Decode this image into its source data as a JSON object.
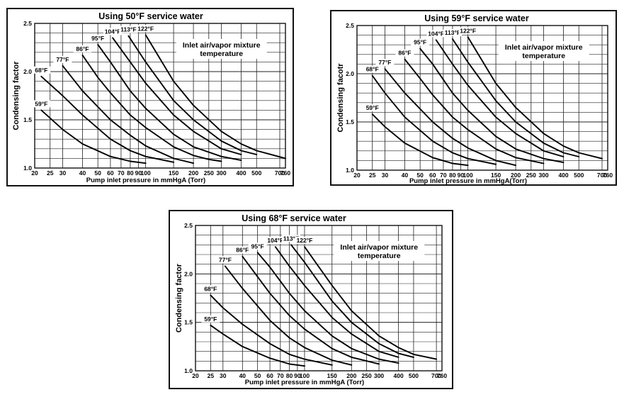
{
  "chart_data": [
    {
      "type": "line",
      "title": "Using 50°F service water",
      "xlabel": "Pump inlet pressure in mmHgA (Torr)",
      "ylabel": "Condensing factor",
      "xscale": "log",
      "xlim": [
        20,
        760
      ],
      "ylim": [
        1.0,
        2.5
      ],
      "grid": true,
      "x_ticks": [
        "20",
        "25",
        "30",
        "40",
        "50",
        "60",
        "70",
        "80",
        "90",
        "100",
        "150",
        "200",
        "250",
        "300",
        "400",
        "500",
        "700",
        "760"
      ],
      "y_ticks": [
        "1.0",
        "1.5",
        "2.0",
        "2.5"
      ],
      "annotation": [
        "Inlet air/vapor mixture",
        "temperature"
      ],
      "series": [
        {
          "name": "59°F",
          "points": [
            [
              22,
              1.6
            ],
            [
              30,
              1.4
            ],
            [
              40,
              1.25
            ],
            [
              60,
              1.12
            ],
            [
              80,
              1.07
            ],
            [
              100,
              1.05
            ]
          ]
        },
        {
          "name": "68°F",
          "points": [
            [
              22,
              1.95
            ],
            [
              30,
              1.75
            ],
            [
              40,
              1.55
            ],
            [
              60,
              1.3
            ],
            [
              80,
              1.18
            ],
            [
              100,
              1.12
            ],
            [
              150,
              1.06
            ]
          ]
        },
        {
          "name": "77°F",
          "points": [
            [
              30,
              2.06
            ],
            [
              40,
              1.8
            ],
            [
              60,
              1.5
            ],
            [
              80,
              1.34
            ],
            [
              100,
              1.23
            ],
            [
              150,
              1.1
            ],
            [
              200,
              1.05
            ]
          ]
        },
        {
          "name": "86°F",
          "points": [
            [
              40,
              2.17
            ],
            [
              50,
              1.94
            ],
            [
              60,
              1.78
            ],
            [
              80,
              1.55
            ],
            [
              100,
              1.42
            ],
            [
              150,
              1.22
            ],
            [
              200,
              1.13
            ],
            [
              250,
              1.09
            ],
            [
              300,
              1.07
            ]
          ]
        },
        {
          "name": "95°F",
          "points": [
            [
              50,
              2.28
            ],
            [
              60,
              2.1
            ],
            [
              80,
              1.8
            ],
            [
              100,
              1.62
            ],
            [
              150,
              1.35
            ],
            [
              200,
              1.22
            ],
            [
              300,
              1.12
            ],
            [
              400,
              1.08
            ]
          ]
        },
        {
          "name": "104°F",
          "points": [
            [
              62,
              2.35
            ],
            [
              80,
              2.1
            ],
            [
              100,
              1.88
            ],
            [
              150,
              1.55
            ],
            [
              200,
              1.38
            ],
            [
              300,
              1.2
            ],
            [
              400,
              1.14
            ]
          ]
        },
        {
          "name": "113°F",
          "points": [
            [
              78,
              2.37
            ],
            [
              100,
              2.1
            ],
            [
              150,
              1.7
            ],
            [
              200,
              1.5
            ],
            [
              300,
              1.28
            ],
            [
              400,
              1.18
            ],
            [
              500,
              1.14
            ]
          ]
        },
        {
          "name": "122°F",
          "points": [
            [
              100,
              2.38
            ],
            [
              150,
              1.9
            ],
            [
              200,
              1.65
            ],
            [
              300,
              1.38
            ],
            [
              400,
              1.25
            ],
            [
              500,
              1.18
            ],
            [
              760,
              1.1
            ]
          ]
        }
      ]
    },
    {
      "type": "line",
      "title": "Using 59°F service water",
      "xlabel": "Pump inlet pressure in mmHgA(Torr)",
      "ylabel": "Condensing facotr",
      "xscale": "log",
      "xlim": [
        20,
        760
      ],
      "ylim": [
        1.0,
        2.5
      ],
      "grid": true,
      "x_ticks": [
        "20",
        "25",
        "30",
        "40",
        "50",
        "60",
        "70",
        "80",
        "90",
        "100",
        "150",
        "200",
        "250",
        "300",
        "400",
        "500",
        "700",
        "760"
      ],
      "y_ticks": [
        "1.0",
        "1.5",
        "2.0",
        "2.5"
      ],
      "annotation": [
        "Inlet air/vapor mixture",
        "temperature"
      ],
      "series": [
        {
          "name": "59°F",
          "points": [
            [
              25,
              1.58
            ],
            [
              30,
              1.45
            ],
            [
              40,
              1.28
            ],
            [
              60,
              1.13
            ],
            [
              80,
              1.07
            ],
            [
              100,
              1.05
            ]
          ]
        },
        {
          "name": "68°F",
          "points": [
            [
              25,
              1.98
            ],
            [
              30,
              1.8
            ],
            [
              40,
              1.55
            ],
            [
              60,
              1.3
            ],
            [
              80,
              1.18
            ],
            [
              100,
              1.12
            ],
            [
              150,
              1.06
            ]
          ]
        },
        {
          "name": "77°F",
          "points": [
            [
              30,
              2.05
            ],
            [
              40,
              1.8
            ],
            [
              60,
              1.5
            ],
            [
              80,
              1.33
            ],
            [
              100,
              1.23
            ],
            [
              150,
              1.1
            ],
            [
              200,
              1.05
            ]
          ]
        },
        {
          "name": "86°F",
          "points": [
            [
              40,
              2.15
            ],
            [
              50,
              1.95
            ],
            [
              60,
              1.78
            ],
            [
              80,
              1.55
            ],
            [
              100,
              1.42
            ],
            [
              150,
              1.22
            ],
            [
              200,
              1.13
            ],
            [
              300,
              1.07
            ]
          ]
        },
        {
          "name": "95°F",
          "points": [
            [
              50,
              2.26
            ],
            [
              60,
              2.1
            ],
            [
              80,
              1.8
            ],
            [
              100,
              1.62
            ],
            [
              150,
              1.35
            ],
            [
              200,
              1.22
            ],
            [
              300,
              1.12
            ],
            [
              400,
              1.08
            ]
          ]
        },
        {
          "name": "104°F",
          "points": [
            [
              63,
              2.35
            ],
            [
              80,
              2.1
            ],
            [
              100,
              1.88
            ],
            [
              150,
              1.55
            ],
            [
              200,
              1.38
            ],
            [
              300,
              1.2
            ],
            [
              400,
              1.14
            ]
          ]
        },
        {
          "name": "113°F",
          "points": [
            [
              80,
              2.36
            ],
            [
              100,
              2.12
            ],
            [
              150,
              1.72
            ],
            [
              200,
              1.5
            ],
            [
              300,
              1.28
            ],
            [
              400,
              1.18
            ],
            [
              500,
              1.14
            ]
          ]
        },
        {
          "name": "122°F",
          "points": [
            [
              100,
              2.38
            ],
            [
              150,
              1.9
            ],
            [
              200,
              1.65
            ],
            [
              300,
              1.38
            ],
            [
              400,
              1.25
            ],
            [
              500,
              1.18
            ],
            [
              700,
              1.12
            ]
          ]
        }
      ]
    },
    {
      "type": "line",
      "title": "Using 68°F service water",
      "xlabel": "Pump inlet pressure in mmHgA (Torr)",
      "ylabel": "Condensing factor",
      "xscale": "log",
      "xlim": [
        20,
        760
      ],
      "ylim": [
        1.0,
        2.5
      ],
      "grid": true,
      "x_ticks": [
        "20",
        "25",
        "30",
        "40",
        "50",
        "60",
        "70",
        "80",
        "90",
        "100",
        "150",
        "200",
        "250",
        "300",
        "400",
        "500",
        "700",
        "760"
      ],
      "y_ticks": [
        "1.0",
        "1.5",
        "2.0",
        "2.5"
      ],
      "annotation": [
        "Inlet air/vapor mixture",
        "temperature"
      ],
      "series": [
        {
          "name": "59°F",
          "points": [
            [
              25,
              1.47
            ],
            [
              30,
              1.38
            ],
            [
              40,
              1.25
            ],
            [
              60,
              1.13
            ],
            [
              80,
              1.07
            ],
            [
              100,
              1.05
            ]
          ]
        },
        {
          "name": "68°F",
          "points": [
            [
              25,
              1.78
            ],
            [
              30,
              1.65
            ],
            [
              40,
              1.48
            ],
            [
              60,
              1.28
            ],
            [
              80,
              1.17
            ],
            [
              100,
              1.12
            ],
            [
              150,
              1.06
            ]
          ]
        },
        {
          "name": "77°F",
          "points": [
            [
              31,
              2.08
            ],
            [
              40,
              1.85
            ],
            [
              60,
              1.52
            ],
            [
              80,
              1.34
            ],
            [
              100,
              1.24
            ],
            [
              150,
              1.11
            ],
            [
              200,
              1.06
            ]
          ]
        },
        {
          "name": "86°F",
          "points": [
            [
              40,
              2.18
            ],
            [
              50,
              1.97
            ],
            [
              60,
              1.8
            ],
            [
              80,
              1.57
            ],
            [
              100,
              1.43
            ],
            [
              150,
              1.23
            ],
            [
              200,
              1.14
            ],
            [
              300,
              1.07
            ]
          ]
        },
        {
          "name": "95°F",
          "points": [
            [
              50,
              2.22
            ],
            [
              60,
              2.07
            ],
            [
              80,
              1.8
            ],
            [
              100,
              1.62
            ],
            [
              150,
              1.36
            ],
            [
              200,
              1.23
            ],
            [
              300,
              1.12
            ],
            [
              400,
              1.08
            ]
          ]
        },
        {
          "name": "104°F",
          "points": [
            [
              65,
              2.28
            ],
            [
              80,
              2.08
            ],
            [
              100,
              1.88
            ],
            [
              150,
              1.55
            ],
            [
              200,
              1.38
            ],
            [
              300,
              1.2
            ],
            [
              400,
              1.14
            ]
          ]
        },
        {
          "name": "113°F",
          "points": [
            [
              82,
              2.3
            ],
            [
              100,
              2.12
            ],
            [
              150,
              1.72
            ],
            [
              200,
              1.5
            ],
            [
              300,
              1.28
            ],
            [
              400,
              1.18
            ],
            [
              500,
              1.14
            ]
          ]
        },
        {
          "name": "122°F",
          "points": [
            [
              100,
              2.28
            ],
            [
              150,
              1.88
            ],
            [
              200,
              1.62
            ],
            [
              300,
              1.36
            ],
            [
              400,
              1.24
            ],
            [
              500,
              1.17
            ],
            [
              700,
              1.12
            ]
          ]
        }
      ]
    }
  ]
}
